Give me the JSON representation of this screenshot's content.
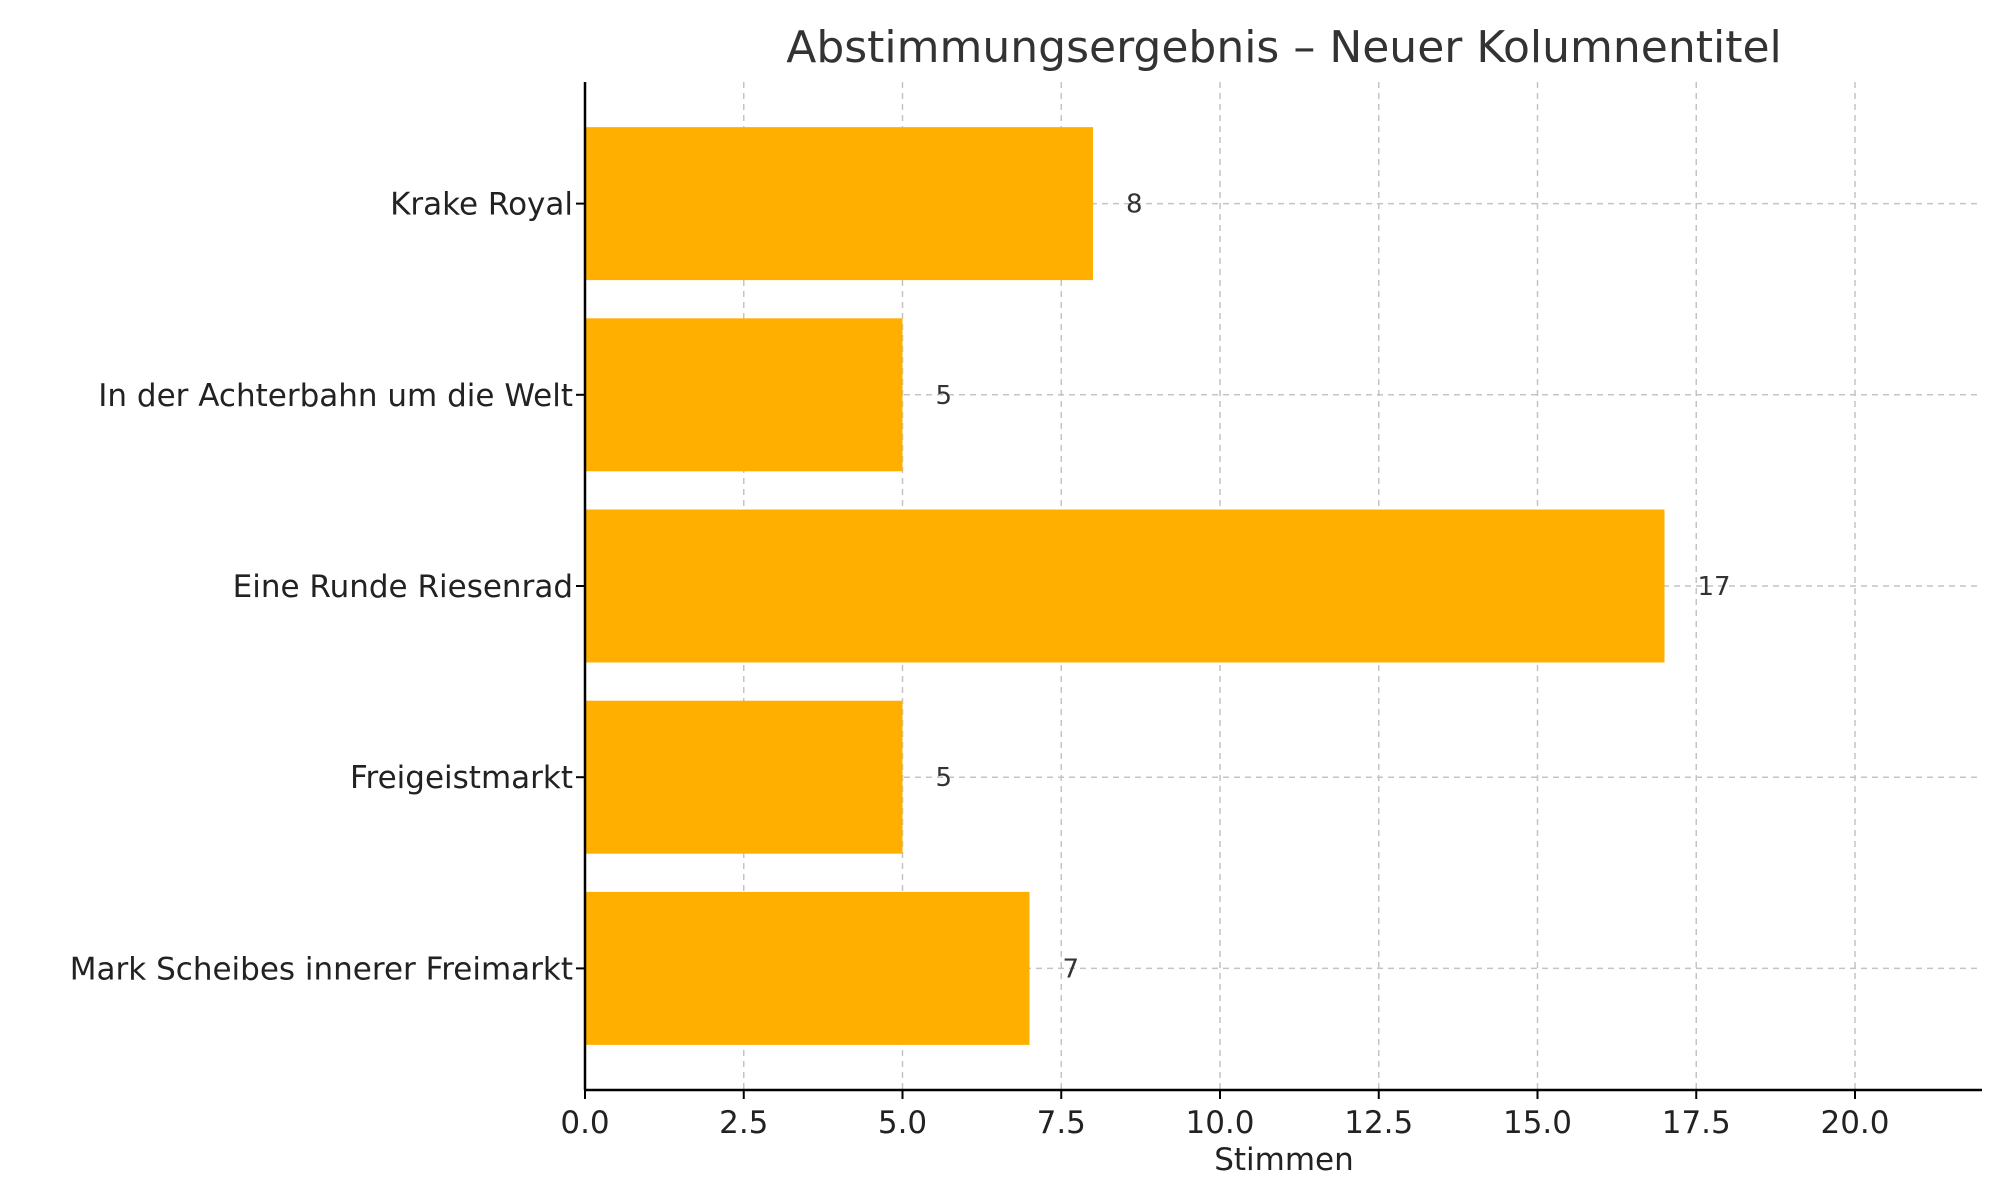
{
  "chart_data": {
    "type": "bar",
    "orientation": "horizontal",
    "title": "Abstimmungsergebnis – Neuer Kolumnentitel",
    "xlabel": "Stimmen",
    "ylabel": "",
    "categories": [
      "Krake Royal",
      "In der Achterbahn um die Welt",
      "Eine Runde Riesenrad",
      "Freigeistmarkt",
      "Mark Scheibes innerer Freimarkt"
    ],
    "values": [
      8,
      5,
      17,
      5,
      7
    ],
    "value_labels": [
      "8",
      "5",
      "17",
      "5",
      "7"
    ],
    "xlim": [
      0,
      22
    ],
    "xticks": [
      0,
      2.5,
      5,
      7.5,
      10,
      12.5,
      15,
      17.5,
      20
    ],
    "xtick_labels": [
      "0.0",
      "2.5",
      "5.0",
      "7.5",
      "10.0",
      "12.5",
      "15.0",
      "17.5",
      "20.0"
    ],
    "bar_color": "#FFAF00",
    "grid": true,
    "grid_style": "dashed",
    "legend": "none"
  }
}
